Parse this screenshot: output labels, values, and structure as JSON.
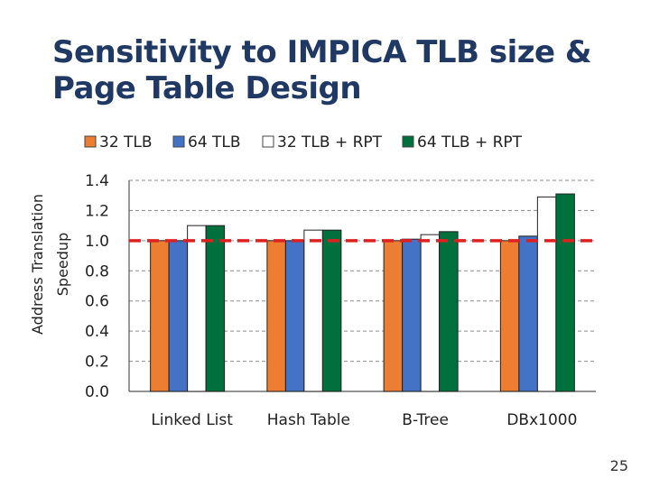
{
  "slide": {
    "title_line1": "Sensitivity to IMPICA TLB size &",
    "title_line2": "Page Table Design",
    "page_number": "25",
    "title_color": "#1f3864"
  },
  "chart_data": {
    "type": "bar",
    "title": "",
    "xlabel": "",
    "ylabel_line1": "Address Translation",
    "ylabel_line2": "Speedup",
    "categories": [
      "Linked List",
      "Hash Table",
      "B-Tree",
      "DBx1000"
    ],
    "series": [
      {
        "name": "32 TLB",
        "color": "#ed7d31",
        "values": [
          1.0,
          1.0,
          1.0,
          1.0
        ]
      },
      {
        "name": "64 TLB",
        "color": "#4472c4",
        "values": [
          1.0,
          1.0,
          1.01,
          1.03
        ]
      },
      {
        "name": "32 TLB + RPT",
        "color": "#ffffff",
        "values": [
          1.1,
          1.07,
          1.04,
          1.29
        ]
      },
      {
        "name": "64 TLB + RPT",
        "color": "#00703c",
        "values": [
          1.1,
          1.07,
          1.06,
          1.31
        ]
      }
    ],
    "ylim": [
      0,
      1.4
    ],
    "yticks": [
      "0.0",
      "0.2",
      "0.4",
      "0.6",
      "0.8",
      "1.0",
      "1.2",
      "1.4"
    ],
    "reference_line": {
      "value": 1.0,
      "color": "#e02020",
      "style": "dashed"
    },
    "grid": "horizontal dashed",
    "legend_position": "top"
  }
}
